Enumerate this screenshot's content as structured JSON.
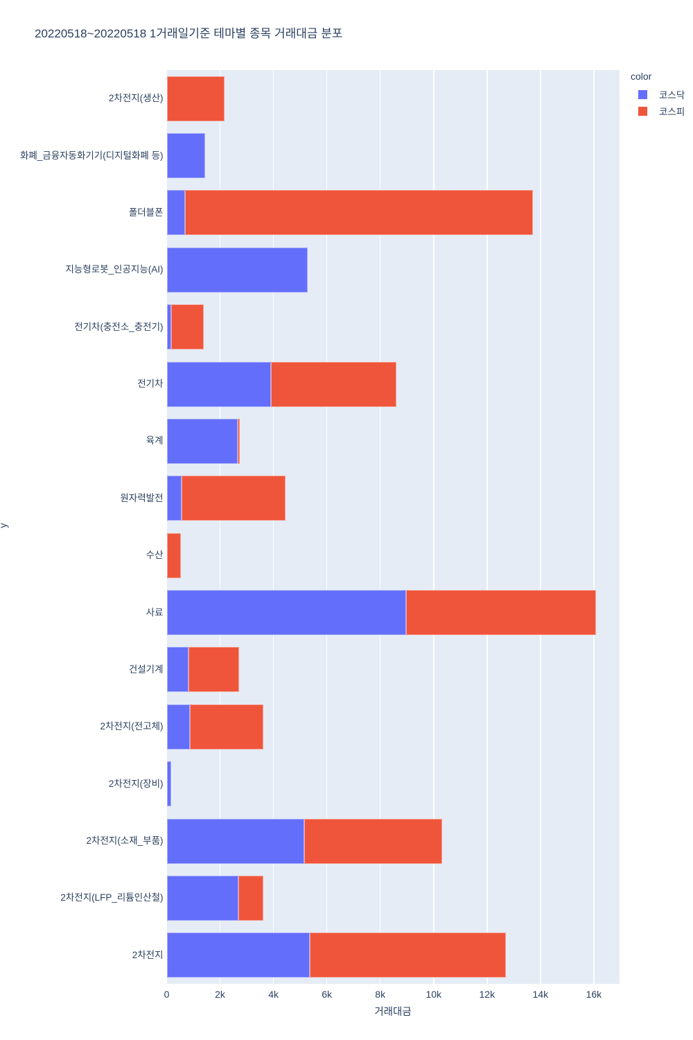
{
  "chart_data": {
    "type": "bar",
    "orientation": "horizontal",
    "barmode": "stack",
    "title": "20220518~20220518 1거래일기준 테마별 종목 거래대금 분포",
    "xlabel": "거래대금",
    "ylabel": "y",
    "legend_title": "color",
    "grid": true,
    "legend_position": "top-right",
    "plot_bg_color": "#e5ecf6",
    "grid_color": "#ffffff",
    "text_color": "#2a3f5f",
    "xlim": [
      0,
      16950
    ],
    "x_ticks": [
      {
        "value": 0,
        "label": "0"
      },
      {
        "value": 2000,
        "label": "2k"
      },
      {
        "value": 4000,
        "label": "4k"
      },
      {
        "value": 6000,
        "label": "6k"
      },
      {
        "value": 8000,
        "label": "8k"
      },
      {
        "value": 10000,
        "label": "10k"
      },
      {
        "value": 12000,
        "label": "12k"
      },
      {
        "value": 14000,
        "label": "14k"
      },
      {
        "value": 16000,
        "label": "16k"
      }
    ],
    "categories": [
      "2차전지(생산)",
      "화폐_금융자동화기기(디지털화폐 등)",
      "폴더블폰",
      "지능형로봇_인공지능(AI)",
      "전기차(충전소_충전기)",
      "전기차",
      "육계",
      "원자력발전",
      "수산",
      "사료",
      "건설기계",
      "2차전지(전고체)",
      "2차전지(장비)",
      "2차전지(소재_부품)",
      "2차전지(LFP_리튬인산철)",
      "2차전지"
    ],
    "series": [
      {
        "name": "코스닥",
        "color": "#636efa",
        "values": [
          0,
          1450,
          690,
          5270,
          180,
          3900,
          2670,
          560,
          0,
          8980,
          810,
          860,
          170,
          5160,
          2680,
          5350
        ]
      },
      {
        "name": "코스피",
        "color": "#ef553b",
        "values": [
          2170,
          0,
          13030,
          0,
          1210,
          4700,
          80,
          3880,
          530,
          7110,
          1900,
          2760,
          0,
          5150,
          940,
          7350
        ]
      }
    ]
  }
}
